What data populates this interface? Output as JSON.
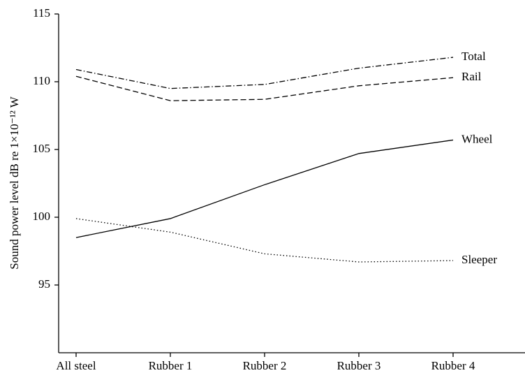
{
  "chart_data": {
    "type": "line",
    "ylabel": "Sound power level dB re 1×10⁻¹² W",
    "categories": [
      "All steel",
      "Rubber 1",
      "Rubber 2",
      "Rubber 3",
      "Rubber 4"
    ],
    "series": [
      {
        "name": "Total",
        "color": "#000000",
        "style": "dashdot",
        "values": [
          110.9,
          109.5,
          109.8,
          111.0,
          111.8
        ]
      },
      {
        "name": "Rail",
        "color": "#000000",
        "style": "dashed",
        "values": [
          110.4,
          108.6,
          108.7,
          109.7,
          110.3
        ]
      },
      {
        "name": "Wheel",
        "color": "#000000",
        "style": "solid",
        "values": [
          98.5,
          99.9,
          102.4,
          104.7,
          105.7
        ]
      },
      {
        "name": "Sleeper",
        "color": "#000000",
        "style": "dotted",
        "values": [
          99.9,
          98.9,
          97.3,
          96.7,
          96.8
        ]
      }
    ],
    "ylim": [
      90,
      115
    ],
    "yticks": [
      95,
      100,
      105,
      110,
      115
    ],
    "grid": false
  }
}
